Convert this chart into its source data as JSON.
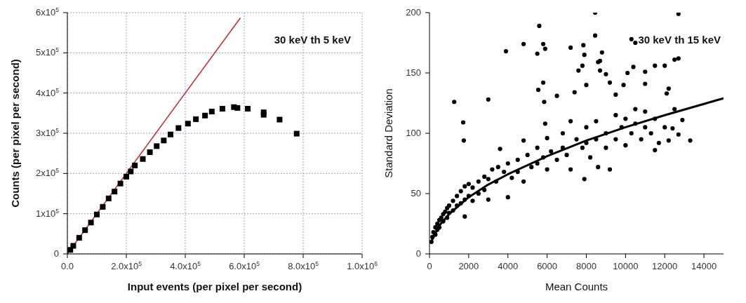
{
  "chart_data": [
    {
      "type": "scatter",
      "xlabel": "Input events (per pixel per second)",
      "ylabel": "Counts (per pixel per second)",
      "annotations": [
        "30 keV th 5 keV"
      ],
      "xlim": [
        0,
        1000000
      ],
      "xticks": [
        {
          "value": 0,
          "label": "0.0"
        },
        {
          "value": 200000,
          "label": "2.0x10$^{5}$"
        },
        {
          "value": 400000,
          "label": "4.0x10$^{5}$"
        },
        {
          "value": 600000,
          "label": "6.0x10$^{5}$"
        },
        {
          "value": 800000,
          "label": "8.0x10$^{5}$"
        },
        {
          "value": 1000000,
          "label": "1.0x10$^{6}$"
        }
      ],
      "ylim": [
        0,
        600000
      ],
      "yticks": [
        0,
        {
          "value": 100000,
          "label": "1x10$^{5}$"
        },
        {
          "value": 200000,
          "label": "2x10$^{5}$"
        },
        {
          "value": 300000,
          "label": "3x10$^{5}$"
        },
        {
          "value": 400000,
          "label": "4x10$^{5}$"
        },
        {
          "value": 500000,
          "label": "5x10$^{5}$"
        },
        {
          "value": 600000,
          "label": "6x10$^{5}$"
        }
      ],
      "grid": true,
      "series": [
        {
          "type": "scatter",
          "marker": "square",
          "color": "#000000",
          "x": [
            10000,
            20000,
            40000,
            60000,
            80000,
            100000,
            120000,
            140000,
            160000,
            180000,
            200000,
            215000,
            229000,
            256000,
            280000,
            303000,
            327000,
            350000,
            377000,
            409000,
            436000,
            467000,
            490000,
            526000,
            565000,
            577000,
            612000,
            666000,
            666000,
            720000,
            778000
          ],
          "values": [
            10000,
            20000,
            40000,
            59000,
            78000,
            98000,
            117000,
            138000,
            155000,
            175000,
            192000,
            205000,
            220000,
            236000,
            253000,
            268000,
            282000,
            297000,
            313000,
            324000,
            335000,
            344000,
            354000,
            361000,
            365000,
            363000,
            361000,
            352000,
            346000,
            334000,
            299000
          ]
        },
        {
          "type": "line",
          "marker": "none",
          "color": "#c0272d",
          "x": [
            0,
            587000
          ],
          "values": [
            0,
            587000
          ]
        }
      ]
    },
    {
      "type": "scatter",
      "xlabel": "Mean Counts",
      "ylabel": "Standard Deviation",
      "annotations": [
        "30 keV th 15 keV"
      ],
      "xlim": [
        0,
        15000
      ],
      "xticks": [
        0,
        2000,
        4000,
        6000,
        8000,
        10000,
        12000,
        14000
      ],
      "ylim": [
        0,
        200
      ],
      "yticks": [
        0,
        50,
        100,
        150,
        200
      ],
      "grid": false,
      "series": [
        {
          "type": "scatter",
          "marker": "circle",
          "color": "#000000",
          "x": [
            100,
            150,
            200,
            300,
            300,
            400,
            400,
            500,
            500,
            600,
            700,
            700,
            800,
            900,
            900,
            1000,
            1000,
            1200,
            1200,
            1400,
            1400,
            1600,
            1600,
            1800,
            1800,
            1800,
            2000,
            2000,
            2200,
            2200,
            2500,
            2500,
            2800,
            2800,
            3000,
            3000,
            3200,
            3400,
            3600,
            3500,
            3800,
            4000,
            4000,
            4200,
            4500,
            4500,
            4800,
            4800,
            5000,
            5200,
            5500,
            5500,
            5800,
            6000,
            6000,
            6200,
            6500,
            6800,
            6800,
            7000,
            7200,
            7200,
            7500,
            7800,
            7900,
            8000,
            8000,
            8200,
            8500,
            8500,
            8600,
            9000,
            9000,
            9200,
            9500,
            9500,
            9800,
            10000,
            10000,
            10300,
            10500,
            10500,
            10800,
            11000,
            11000,
            11300,
            11500,
            11500,
            11700,
            12000,
            12500,
            12400,
            1260,
            1720,
            1750,
            3000,
            3900,
            4800,
            5500,
            5600,
            5550,
            5800,
            5800,
            5900,
            5850,
            5900,
            6500,
            7200,
            7400,
            7850,
            7900,
            7600,
            7800,
            8000,
            8450,
            8450,
            8600,
            8700,
            8800,
            8700,
            9000,
            9200,
            9500,
            9900,
            10100,
            10300,
            10500,
            10400,
            11000,
            11000,
            11500,
            12000,
            12100,
            12200,
            12500,
            12700,
            12700,
            12900,
            13300,
            12700,
            12200
          ],
          "values": [
            10,
            14,
            18,
            22,
            16,
            25,
            20,
            28,
            22,
            30,
            33,
            27,
            35,
            38,
            30,
            40,
            34,
            44,
            36,
            48,
            40,
            52,
            42,
            56,
            45,
            31,
            58,
            48,
            55,
            44,
            60,
            50,
            64,
            53,
            62,
            45,
            70,
            60,
            87,
            72,
            68,
            75,
            47,
            63,
            78,
            68,
            94,
            60,
            82,
            72,
            88,
            75,
            80,
            96,
            70,
            85,
            78,
            100,
            88,
            82,
            110,
            70,
            95,
            88,
            62,
            105,
            92,
            80,
            110,
            95,
            72,
            100,
            88,
            70,
            115,
            95,
            105,
            112,
            90,
            100,
            120,
            108,
            95,
            118,
            105,
            100,
            112,
            86,
            92,
            105,
            120,
            104,
            126,
            109,
            94,
            128,
            168,
            174,
            166,
            189,
            136,
            174,
            142,
            170,
            126,
            108,
            131,
            171,
            134,
            173,
            165,
            152,
            156,
            140,
            200,
            181,
            159,
            152,
            167,
            160,
            149,
            142,
            132,
            140,
            150,
            178,
            175,
            155,
            151,
            141,
            156,
            156,
            133,
            137,
            161,
            162,
            199,
            111,
            94,
            99,
            94
          ]
        },
        {
          "type": "line",
          "marker": "none",
          "color": "#000000",
          "x": [
            100,
            500,
            1000,
            2000,
            3000,
            4000,
            6000,
            8000,
            10000,
            12000,
            15000
          ],
          "values": [
            10.5,
            23.5,
            33,
            47,
            57.5,
            66,
            81,
            94,
            105,
            115,
            129
          ]
        }
      ]
    }
  ]
}
